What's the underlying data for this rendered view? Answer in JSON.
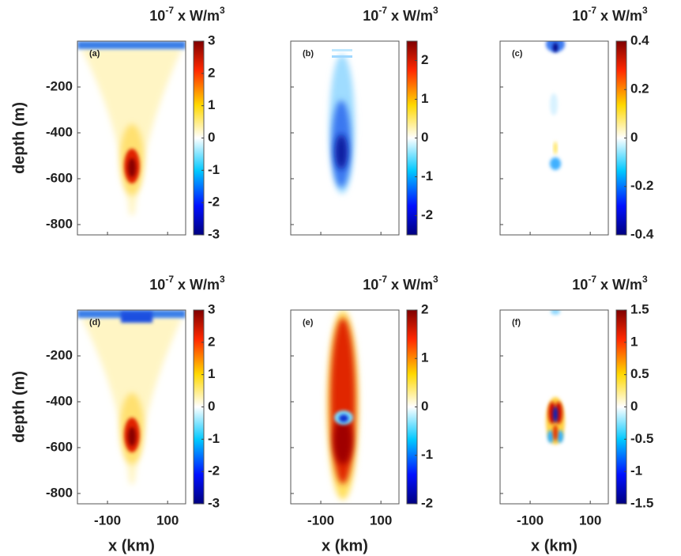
{
  "chart_data": [
    {
      "type": "heatmap",
      "panel_label": "(a)",
      "colorbar_label": [
        "10",
        "-7",
        " x W/m",
        "3"
      ],
      "ylabel": "depth (m)",
      "xlim": [
        -200,
        160
      ],
      "xticks": [
        -100,
        100
      ],
      "ylim": [
        -845,
        0
      ],
      "yticks": [
        -800,
        -600,
        -400,
        -200
      ],
      "clim": [
        -3,
        3
      ],
      "cticks": [
        -3,
        -2,
        -1,
        0,
        1,
        2,
        3
      ]
    },
    {
      "type": "heatmap",
      "panel_label": "(b)",
      "colorbar_label": [
        "10",
        "-7",
        " x W/m",
        "3"
      ],
      "xlim": [
        -200,
        160
      ],
      "xticks": [
        -100,
        100
      ],
      "ylim": [
        -845,
        0
      ],
      "yticks": [
        -800,
        -600,
        -400,
        -200
      ],
      "clim": [
        -2.5,
        2.5
      ],
      "cticks": [
        -2,
        -1,
        0,
        1,
        2
      ]
    },
    {
      "type": "heatmap",
      "panel_label": "(c)",
      "colorbar_label": [
        "10",
        "-7",
        " x W/m",
        "3"
      ],
      "xlim": [
        -200,
        160
      ],
      "xticks": [
        -100,
        100
      ],
      "ylim": [
        -845,
        0
      ],
      "yticks": [
        -800,
        -600,
        -400,
        -200
      ],
      "clim": [
        -0.4,
        0.4
      ],
      "cticks": [
        -0.4,
        -0.2,
        0,
        0.2,
        0.4
      ]
    },
    {
      "type": "heatmap",
      "panel_label": "(d)",
      "colorbar_label": [
        "10",
        "-7",
        " x W/m",
        "3"
      ],
      "ylabel": "depth (m)",
      "xlabel": "x (km)",
      "xlim": [
        -200,
        160
      ],
      "xticks": [
        -100,
        100
      ],
      "ylim": [
        -845,
        0
      ],
      "yticks": [
        -800,
        -600,
        -400,
        -200
      ],
      "clim": [
        -3,
        3
      ],
      "cticks": [
        -3,
        -2,
        -1,
        0,
        1,
        2,
        3
      ]
    },
    {
      "type": "heatmap",
      "panel_label": "(e)",
      "colorbar_label": [
        "10",
        "-7",
        " x W/m",
        "3"
      ],
      "xlabel": "x (km)",
      "xlim": [
        -200,
        160
      ],
      "xticks": [
        -100,
        100
      ],
      "ylim": [
        -845,
        0
      ],
      "yticks": [
        -800,
        -600,
        -400,
        -200
      ],
      "clim": [
        -2,
        2
      ],
      "cticks": [
        -2,
        -1,
        0,
        1,
        2
      ]
    },
    {
      "type": "heatmap",
      "panel_label": "(f)",
      "colorbar_label": [
        "10",
        "-7",
        " x W/m",
        "3"
      ],
      "xlabel": "x (km)",
      "xlim": [
        -200,
        160
      ],
      "xticks": [
        -100,
        100
      ],
      "ylim": [
        -845,
        0
      ],
      "yticks": [
        -800,
        -600,
        -400,
        -200
      ],
      "clim": [
        -1.5,
        1.5
      ],
      "cticks": [
        -1.5,
        -1,
        -0.5,
        0,
        0.5,
        1,
        1.5
      ]
    }
  ]
}
